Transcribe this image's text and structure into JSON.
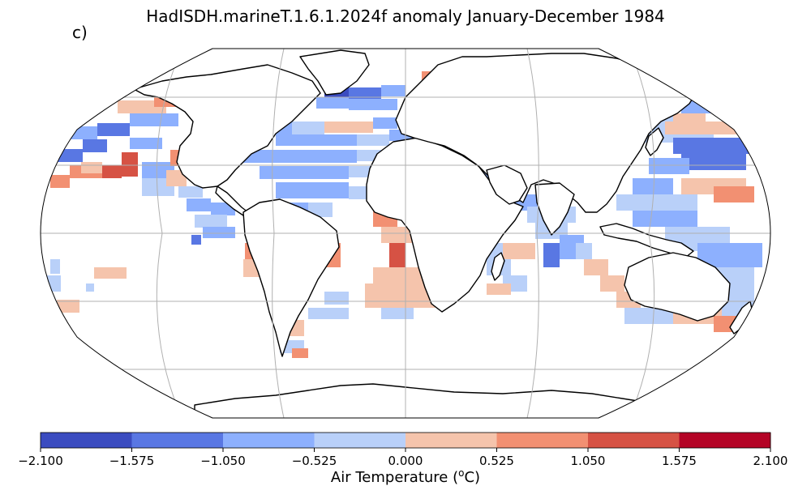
{
  "title": "HadISDH.marineT.1.6.1.2024f anomaly January-December 1984",
  "panel_label": "c)",
  "colorbar": {
    "label_text": "Air Temperature (",
    "label_sup": "o",
    "label_unit": "C)",
    "ticks": [
      "−2.100",
      "−1.575",
      "−1.050",
      "−0.525",
      "0.000",
      "0.525",
      "1.050",
      "1.575",
      "2.100"
    ],
    "bin_colors": [
      "#3b4cc0",
      "#5977e3",
      "#8db0fe",
      "#b9d0f9",
      "#f5c4ac",
      "#f29072",
      "#d65244",
      "#b40426"
    ],
    "range": [
      -2.1,
      2.1
    ]
  },
  "map": {
    "projection": "Robinson",
    "land_color": "#ffffff",
    "coast_color": "#000000",
    "grid_color": "#b0b0b0"
  }
}
